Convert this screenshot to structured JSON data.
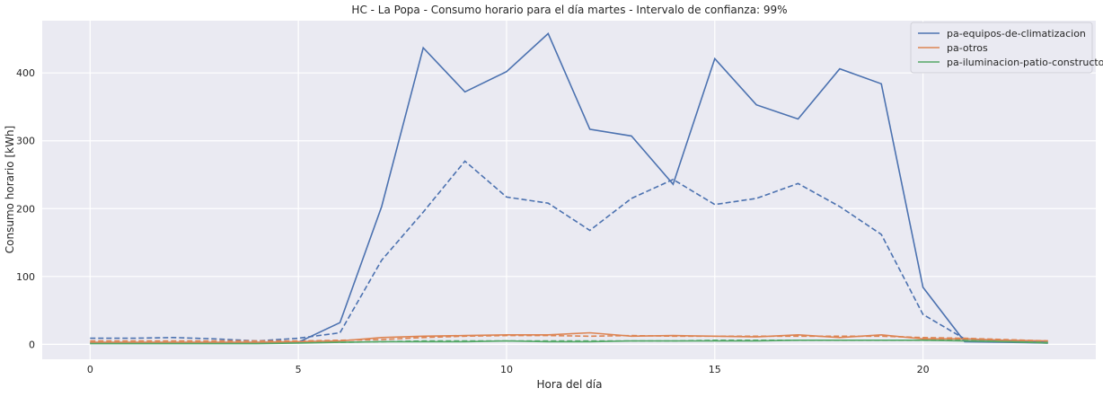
{
  "chart_data": {
    "type": "line",
    "title": "HC - La Popa - Consumo horario para el día martes - Intervalo de confianza: 99%",
    "xlabel": "Hora del día",
    "ylabel": "Consumo horario [kWh]",
    "xlim": [
      -1.15,
      24.15
    ],
    "ylim": [
      -22,
      477
    ],
    "x_ticks": [
      0,
      5,
      10,
      15,
      20
    ],
    "y_ticks": [
      0,
      100,
      200,
      300,
      400
    ],
    "grid": true,
    "legend_position": "top-right",
    "x": [
      0,
      1,
      2,
      3,
      4,
      5,
      6,
      7,
      8,
      9,
      10,
      11,
      12,
      13,
      14,
      15,
      16,
      17,
      18,
      19,
      20,
      21,
      22,
      23
    ],
    "series": [
      {
        "name": "pa-equipos-de-climatizacion",
        "color": "#4c72b0",
        "values": [
          2,
          2,
          2,
          2,
          2,
          3,
          32,
          203,
          437,
          372,
          402,
          458,
          317,
          307,
          236,
          421,
          353,
          332,
          406,
          384,
          84,
          4,
          3,
          2
        ],
        "dashed_values": [
          9,
          9,
          10,
          8,
          5,
          9,
          17,
          124,
          195,
          270,
          217,
          208,
          168,
          215,
          243,
          206,
          215,
          237,
          203,
          162,
          44,
          8,
          5,
          3
        ]
      },
      {
        "name": "pa-otros",
        "color": "#dd8452",
        "values": [
          3,
          3,
          3,
          3,
          3,
          4,
          5,
          10,
          12,
          13,
          14,
          14,
          17,
          12,
          13,
          12,
          11,
          14,
          10,
          14,
          8,
          8,
          6,
          5
        ],
        "dashed_values": [
          5,
          5,
          5,
          5,
          5,
          5,
          6,
          7,
          10,
          12,
          13,
          13,
          12,
          13,
          12,
          12,
          12,
          12,
          12,
          12,
          10,
          9,
          7,
          5
        ]
      },
      {
        "name": "pa-iluminacion-patio-constructor",
        "color": "#55a868",
        "values": [
          1,
          1,
          1,
          1,
          1,
          2,
          3,
          4,
          4,
          4,
          5,
          4,
          4,
          5,
          5,
          5,
          5,
          6,
          6,
          6,
          6,
          5,
          4,
          2
        ],
        "dashed_values": [
          2,
          2,
          2,
          2,
          2,
          3,
          3,
          4,
          5,
          5,
          5,
          5,
          5,
          5,
          5,
          6,
          6,
          6,
          6,
          6,
          6,
          6,
          5,
          3
        ]
      }
    ]
  }
}
